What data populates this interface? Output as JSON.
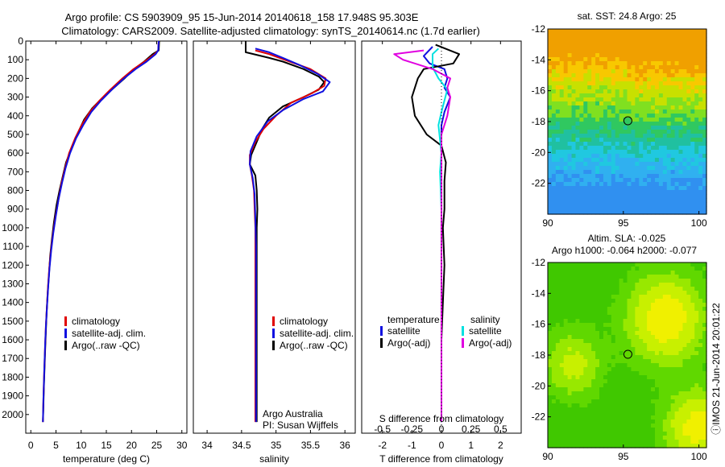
{
  "title_line1": "Argo profile: CS 5903909_95 15-Jun-2014 20140618_158 17.948S 95.303E",
  "title_line2": "Climatology: CARS2009. Satellite-adjusted climatology: synTS_20140614.nc (1.7d earlier)",
  "side_label": "ⓘIMOS 21-Jun-2014 20:01:22",
  "chart_data": [
    {
      "type": "line",
      "id": "temperature",
      "xlabel": "temperature (deg C)",
      "xlim": [
        -1,
        31
      ],
      "ylim": [
        2100,
        0
      ],
      "xticks": [
        0,
        5,
        10,
        15,
        20,
        25,
        30
      ],
      "yticks": [
        0,
        100,
        200,
        300,
        400,
        500,
        600,
        700,
        800,
        900,
        1000,
        1100,
        1200,
        1300,
        1400,
        1500,
        1600,
        1700,
        1800,
        1900,
        2000
      ],
      "legend": [
        "climatology",
        "satellite-adj. clim.",
        "Argo(..raw -QC)"
      ],
      "colors": {
        "climatology": "#e00000",
        "satellite": "#1010e0",
        "argo": "#000000"
      },
      "series": [
        {
          "name": "Argo(..raw -QC)",
          "color": "#000000",
          "points": [
            [
              25.5,
              0
            ],
            [
              25.4,
              50
            ],
            [
              24.2,
              70
            ],
            [
              22.5,
              110
            ],
            [
              20.5,
              150
            ],
            [
              18.6,
              200
            ],
            [
              16.5,
              250
            ],
            [
              14.0,
              310
            ],
            [
              12.2,
              360
            ],
            [
              10.6,
              420
            ],
            [
              9.2,
              500
            ],
            [
              8.0,
              580
            ],
            [
              7.0,
              650
            ],
            [
              6.3,
              730
            ],
            [
              5.7,
              800
            ],
            [
              5.1,
              880
            ],
            [
              4.6,
              970
            ],
            [
              4.2,
              1060
            ],
            [
              3.85,
              1150
            ],
            [
              3.6,
              1250
            ],
            [
              3.35,
              1350
            ],
            [
              3.15,
              1450
            ],
            [
              3.0,
              1550
            ],
            [
              2.85,
              1650
            ],
            [
              2.72,
              1750
            ],
            [
              2.6,
              1850
            ],
            [
              2.5,
              1950
            ],
            [
              2.4,
              2040
            ]
          ]
        },
        {
          "name": "climatology",
          "color": "#e00000",
          "points": [
            [
              25.4,
              0
            ],
            [
              25.3,
              50
            ],
            [
              24.6,
              70
            ],
            [
              22.6,
              110
            ],
            [
              20.4,
              150
            ],
            [
              18.2,
              200
            ],
            [
              15.8,
              260
            ],
            [
              13.6,
              320
            ],
            [
              11.7,
              380
            ],
            [
              10.1,
              450
            ],
            [
              8.8,
              520
            ],
            [
              7.6,
              600
            ],
            [
              6.8,
              680
            ],
            [
              6.1,
              760
            ],
            [
              5.5,
              850
            ],
            [
              4.9,
              940
            ],
            [
              4.4,
              1030
            ],
            [
              4.0,
              1120
            ],
            [
              3.65,
              1220
            ],
            [
              3.4,
              1320
            ],
            [
              3.2,
              1420
            ],
            [
              3.0,
              1520
            ],
            [
              2.85,
              1620
            ],
            [
              2.72,
              1720
            ],
            [
              2.6,
              1820
            ],
            [
              2.5,
              1920
            ],
            [
              2.4,
              2040
            ]
          ]
        },
        {
          "name": "satellite-adj. clim.",
          "color": "#1010e0",
          "points": [
            [
              25.4,
              0
            ],
            [
              25.3,
              50
            ],
            [
              24.8,
              70
            ],
            [
              23.0,
              110
            ],
            [
              20.8,
              150
            ],
            [
              18.5,
              200
            ],
            [
              16.1,
              260
            ],
            [
              13.9,
              320
            ],
            [
              12.0,
              380
            ],
            [
              10.4,
              450
            ],
            [
              9.0,
              520
            ],
            [
              7.8,
              600
            ],
            [
              6.9,
              680
            ],
            [
              6.2,
              760
            ],
            [
              5.5,
              850
            ],
            [
              4.95,
              940
            ],
            [
              4.45,
              1030
            ],
            [
              4.05,
              1120
            ],
            [
              3.7,
              1220
            ],
            [
              3.45,
              1320
            ],
            [
              3.22,
              1420
            ],
            [
              3.02,
              1520
            ],
            [
              2.86,
              1620
            ],
            [
              2.73,
              1720
            ],
            [
              2.61,
              1820
            ],
            [
              2.5,
              1920
            ],
            [
              2.4,
              2040
            ]
          ]
        }
      ]
    },
    {
      "type": "line",
      "id": "salinity",
      "xlabel": "salinity",
      "xlim": [
        33.8,
        36.15
      ],
      "ylim": [
        2100,
        0
      ],
      "xticks": [
        34,
        34.5,
        35,
        35.5,
        36
      ],
      "xticklabels": [
        "34",
        "34.5",
        "35",
        "35.5",
        "36"
      ],
      "legend": [
        "climatology",
        "satellite-adj. clim.",
        "Argo(..raw -QC)"
      ],
      "annotation": [
        "Argo Australia",
        "PI: Susan Wijffels"
      ],
      "series": [
        {
          "name": "Argo(..raw -QC)",
          "color": "#000000",
          "points": [
            [
              34.56,
              0
            ],
            [
              34.56,
              60
            ],
            [
              34.9,
              90
            ],
            [
              35.1,
              110
            ],
            [
              35.4,
              150
            ],
            [
              35.62,
              190
            ],
            [
              35.7,
              220
            ],
            [
              35.62,
              260
            ],
            [
              35.4,
              300
            ],
            [
              35.1,
              350
            ],
            [
              34.9,
              410
            ],
            [
              34.8,
              470
            ],
            [
              34.72,
              540
            ],
            [
              34.64,
              610
            ],
            [
              34.62,
              660
            ],
            [
              34.7,
              720
            ],
            [
              34.72,
              800
            ],
            [
              34.73,
              900
            ],
            [
              34.72,
              1000
            ],
            [
              34.72,
              1100
            ],
            [
              34.72,
              1200
            ],
            [
              34.72,
              1300
            ],
            [
              34.72,
              1400
            ],
            [
              34.72,
              1500
            ],
            [
              34.72,
              1600
            ],
            [
              34.72,
              1700
            ],
            [
              34.72,
              1800
            ],
            [
              34.72,
              1900
            ],
            [
              34.72,
              2040
            ]
          ]
        },
        {
          "name": "climatology",
          "color": "#e00000",
          "points": [
            [
              34.7,
              50
            ],
            [
              34.9,
              70
            ],
            [
              35.2,
              110
            ],
            [
              35.5,
              150
            ],
            [
              35.72,
              200
            ],
            [
              35.7,
              240
            ],
            [
              35.52,
              280
            ],
            [
              35.22,
              330
            ],
            [
              35.0,
              400
            ],
            [
              34.82,
              470
            ],
            [
              34.7,
              540
            ],
            [
              34.62,
              610
            ],
            [
              34.62,
              660
            ],
            [
              34.65,
              720
            ],
            [
              34.68,
              800
            ],
            [
              34.69,
              900
            ],
            [
              34.7,
              1000
            ],
            [
              34.7,
              1100
            ],
            [
              34.7,
              1200
            ],
            [
              34.7,
              1300
            ],
            [
              34.7,
              1400
            ],
            [
              34.7,
              1500
            ],
            [
              34.7,
              1600
            ],
            [
              34.7,
              1700
            ],
            [
              34.7,
              1800
            ],
            [
              34.7,
              1900
            ],
            [
              34.7,
              2040
            ]
          ]
        },
        {
          "name": "satellite-adj. clim.",
          "color": "#1010e0",
          "points": [
            [
              34.7,
              40
            ],
            [
              34.9,
              60
            ],
            [
              35.1,
              90
            ],
            [
              35.35,
              130
            ],
            [
              35.6,
              175
            ],
            [
              35.78,
              220
            ],
            [
              35.68,
              270
            ],
            [
              35.4,
              310
            ],
            [
              35.1,
              370
            ],
            [
              34.88,
              430
            ],
            [
              34.72,
              510
            ],
            [
              34.63,
              590
            ],
            [
              34.62,
              660
            ],
            [
              34.66,
              730
            ],
            [
              34.69,
              820
            ],
            [
              34.7,
              950
            ],
            [
              34.71,
              1100
            ],
            [
              34.71,
              1300
            ],
            [
              34.71,
              1500
            ],
            [
              34.71,
              1700
            ],
            [
              34.71,
              1900
            ],
            [
              34.71,
              2040
            ]
          ]
        }
      ]
    },
    {
      "type": "line",
      "id": "difference",
      "xlabel": "T difference from climatology",
      "xlabel_top": "S difference from climatology",
      "xlim": [
        -2.7,
        2.7
      ],
      "ylim": [
        2100,
        0
      ],
      "xticks": [
        -2,
        -1,
        0,
        1,
        2
      ],
      "xticks_top": [
        -0.5,
        -0.25,
        0,
        0.25,
        0.5
      ],
      "xticklabels_top": [
        "-0.5",
        "-0.25",
        "0",
        "0.25",
        "0.5"
      ],
      "legend_temperature": {
        "title": "temperature",
        "items": [
          "satellite",
          "Argo(-adj)"
        ]
      },
      "legend_salinity": {
        "title": "salinity",
        "items": [
          "satellite",
          "Argo(-adj)"
        ]
      },
      "series": [
        {
          "name": "temperature satellite",
          "color": "#1010e0",
          "points": [
            [
              -0.3,
              30
            ],
            [
              -0.6,
              80
            ],
            [
              -0.4,
              120
            ],
            [
              0.1,
              150
            ],
            [
              0.2,
              200
            ],
            [
              0.1,
              250
            ],
            [
              0.3,
              300
            ],
            [
              0.1,
              380
            ],
            [
              0.0,
              450
            ],
            [
              0.0,
              550
            ],
            [
              0.0,
              700
            ],
            [
              0.0,
              900
            ],
            [
              0.0,
              1100
            ],
            [
              0.0,
              1300
            ],
            [
              0.0,
              1500
            ],
            [
              0.0,
              1800
            ],
            [
              0.0,
              2040
            ]
          ]
        },
        {
          "name": "temperature Argo(-adj)",
          "color": "#000000",
          "points": [
            [
              -0.2,
              20
            ],
            [
              0.6,
              70
            ],
            [
              0.4,
              120
            ],
            [
              -0.6,
              150
            ],
            [
              -0.8,
              200
            ],
            [
              -1.0,
              300
            ],
            [
              -0.9,
              400
            ],
            [
              -0.5,
              500
            ],
            [
              0.0,
              560
            ],
            [
              0.15,
              650
            ],
            [
              0.1,
              750
            ],
            [
              0.1,
              900
            ],
            [
              0.05,
              1000
            ],
            [
              0.1,
              1200
            ],
            [
              0.05,
              1400
            ],
            [
              0.0,
              1600
            ],
            [
              0.0,
              2040
            ]
          ]
        },
        {
          "name": "salinity satellite",
          "color": "#00e0e0",
          "points": [
            [
              -0.1,
              40
            ],
            [
              -0.3,
              70
            ],
            [
              -0.3,
              140
            ],
            [
              -0.1,
              200
            ],
            [
              0.2,
              260
            ],
            [
              0.0,
              380
            ],
            [
              -0.1,
              450
            ],
            [
              0.0,
              600
            ],
            [
              -0.05,
              700
            ],
            [
              0.0,
              900
            ],
            [
              0.0,
              1200
            ],
            [
              0.0,
              1500
            ],
            [
              0.0,
              2040
            ]
          ]
        },
        {
          "name": "salinity Argo(-adj)",
          "color": "#e000e0",
          "points": [
            [
              -0.6,
              50
            ],
            [
              -1.6,
              70
            ],
            [
              -1.3,
              100
            ],
            [
              -0.3,
              150
            ],
            [
              0.3,
              200
            ],
            [
              0.2,
              250
            ],
            [
              0.3,
              300
            ],
            [
              0.2,
              400
            ],
            [
              0.0,
              500
            ],
            [
              0.0,
              800
            ],
            [
              0.0,
              1200
            ],
            [
              0.0,
              1600
            ],
            [
              0.0,
              2040
            ]
          ]
        }
      ]
    },
    {
      "type": "heatmap",
      "id": "sst",
      "title": "sat. SST: 24.8 Argo: 25",
      "xlim": [
        90,
        100.5
      ],
      "ylim": [
        -24,
        -12
      ],
      "xticks": [
        90,
        95,
        100
      ],
      "yticks": [
        -12,
        -14,
        -16,
        -18,
        -20,
        -22
      ],
      "marker": {
        "lon": 95.3,
        "lat": -17.95
      }
    },
    {
      "type": "heatmap",
      "id": "sla",
      "title": "Altim. SLA: -0.025",
      "subtitle": "Argo h1000: -0.064 h2000: -0.077",
      "xlim": [
        90,
        100.5
      ],
      "ylim": [
        -24,
        -12
      ],
      "xticks": [
        90,
        95,
        100
      ],
      "yticks": [
        -12,
        -14,
        -16,
        -18,
        -20,
        -22
      ],
      "marker": {
        "lon": 95.3,
        "lat": -17.95
      }
    }
  ]
}
